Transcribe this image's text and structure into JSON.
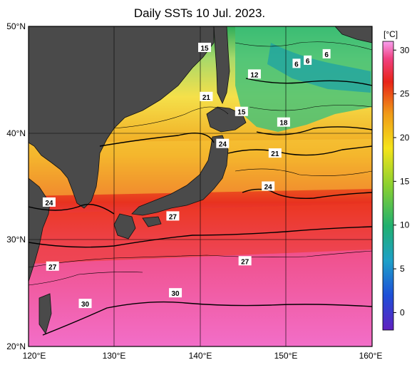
{
  "title": "Daily SSTs 10 Jul. 2023.",
  "map": {
    "lat_labels": [
      "50°N",
      "40°N",
      "30°N",
      "20°N"
    ],
    "lon_labels": [
      "120°E",
      "130°E",
      "140°E",
      "150°E",
      "160°E"
    ],
    "lat_range": [
      20,
      50
    ],
    "lon_range": [
      120,
      160
    ],
    "land_color": "#4a4a4a",
    "grid": true
  },
  "isotherm_labels": [
    {
      "text": "15",
      "lon": 140.5,
      "lat": 48.0
    },
    {
      "text": "6",
      "lon": 154.7,
      "lat": 47.4
    },
    {
      "text": "6",
      "lon": 152.5,
      "lat": 46.8
    },
    {
      "text": "6",
      "lon": 151.2,
      "lat": 46.5
    },
    {
      "text": "12",
      "lon": 146.3,
      "lat": 45.5
    },
    {
      "text": "21",
      "lon": 140.7,
      "lat": 43.4
    },
    {
      "text": "15",
      "lon": 144.8,
      "lat": 42.0
    },
    {
      "text": "18",
      "lon": 149.7,
      "lat": 41.0
    },
    {
      "text": "24",
      "lon": 142.6,
      "lat": 39.0
    },
    {
      "text": "21",
      "lon": 148.7,
      "lat": 38.1
    },
    {
      "text": "24",
      "lon": 147.9,
      "lat": 35.0
    },
    {
      "text": "24",
      "lon": 122.4,
      "lat": 33.5
    },
    {
      "text": "27",
      "lon": 136.8,
      "lat": 32.2
    },
    {
      "text": "27",
      "lon": 122.8,
      "lat": 27.5
    },
    {
      "text": "27",
      "lon": 145.2,
      "lat": 28.0
    },
    {
      "text": "30",
      "lon": 126.6,
      "lat": 24.0
    },
    {
      "text": "30",
      "lon": 137.1,
      "lat": 25.0
    }
  ],
  "colorbar": {
    "unit": "[°C]",
    "ticks": [
      "30",
      "25",
      "20",
      "15",
      "10",
      "5",
      "0"
    ],
    "range": [
      -2,
      31
    ]
  }
}
